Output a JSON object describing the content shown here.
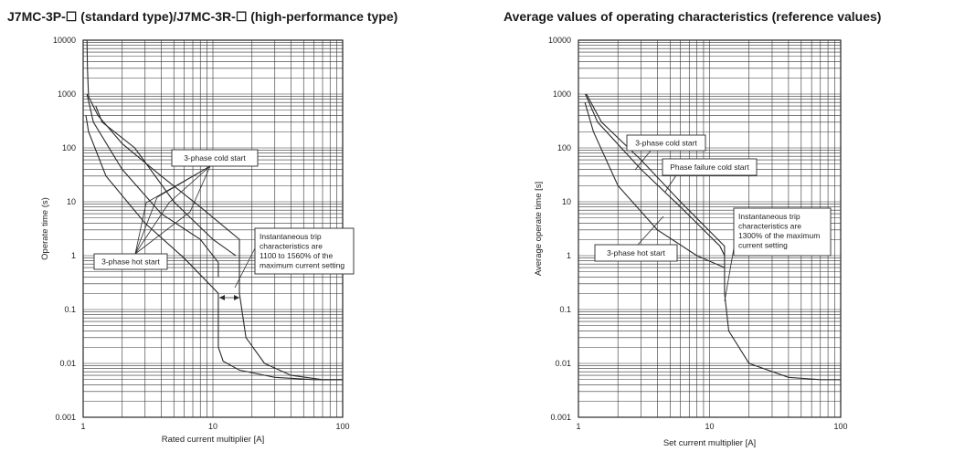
{
  "chart_data": [
    {
      "type": "line",
      "title": "J7MC-3P-☐ (standard type)/J7MC-3R-☐ (high-performance type)",
      "xlabel": "Rated current multiplier [A]",
      "ylabel": "Operate time (s)",
      "x_scale": "log",
      "y_scale": "log",
      "xlim": [
        1,
        100
      ],
      "ylim": [
        0.001,
        10000
      ],
      "x_ticks": [
        "1",
        "10",
        "100"
      ],
      "y_ticks": [
        "10000",
        "1000",
        "100",
        "10",
        "1",
        "0.1",
        "0.01",
        "0.001"
      ],
      "grid": true,
      "series": [
        {
          "values": [
            [
              1.05,
              400
            ],
            [
              1.1,
              200
            ],
            [
              1.5,
              30
            ],
            [
              3,
              4
            ],
            [
              6,
              0.9
            ],
            [
              11,
              0.2
            ],
            [
              11,
              0.02
            ],
            [
              12,
              0.011
            ],
            [
              16,
              0.0075
            ],
            [
              30,
              0.0055
            ],
            [
              60,
              0.005
            ],
            [
              100,
              0.005
            ]
          ]
        },
        {
          "values": [
            [
              1.07,
              1000
            ],
            [
              1.2,
              300
            ],
            [
              2,
              40
            ],
            [
              4,
              6
            ],
            [
              8,
              2
            ],
            [
              11,
              0.75
            ],
            [
              11,
              0.4
            ]
          ]
        },
        {
          "values": [
            [
              1.25,
              600
            ],
            [
              1.4,
              300
            ],
            [
              2.5,
              100
            ],
            [
              5,
              10
            ],
            [
              10,
              2
            ],
            [
              15,
              1
            ]
          ]
        },
        {
          "values": [
            [
              1.07,
              10000
            ],
            [
              1.08,
              3000
            ],
            [
              1.1,
              900
            ],
            [
              1.3,
              400
            ],
            [
              2,
              120
            ],
            [
              4,
              30
            ],
            [
              8,
              8
            ],
            [
              16,
              2
            ],
            [
              16,
              0.2
            ],
            [
              18,
              0.03
            ],
            [
              25,
              0.01
            ],
            [
              40,
              0.006
            ],
            [
              70,
              0.005
            ],
            [
              100,
              0.005
            ]
          ]
        }
      ],
      "annotations": [
        {
          "text": "3-phase cold start"
        },
        {
          "text": "3-phase hot start"
        },
        {
          "lines": [
            "Instantaneous trip",
            "characteristics are",
            "1100 to 1560% of the",
            "maximum current setting"
          ]
        }
      ]
    },
    {
      "type": "line",
      "title": "Average values of operating characteristics (reference values)",
      "xlabel": "Set current multiplier [A]",
      "ylabel": "Average operate time [s]",
      "x_scale": "log",
      "y_scale": "log",
      "xlim": [
        1,
        100
      ],
      "ylim": [
        0.001,
        10000
      ],
      "x_ticks": [
        "1",
        "10",
        "100"
      ],
      "y_ticks": [
        "10000",
        "1000",
        "100",
        "10",
        "1",
        "0.1",
        "0.01",
        "0.001"
      ],
      "grid": true,
      "series": [
        {
          "values": [
            [
              1.12,
              700
            ],
            [
              1.3,
              200
            ],
            [
              2,
              20
            ],
            [
              4,
              3
            ],
            [
              8,
              1
            ],
            [
              13,
              0.6
            ]
          ]
        },
        {
          "values": [
            [
              1.13,
              1000
            ],
            [
              1.4,
              300
            ],
            [
              3,
              40
            ],
            [
              6,
              8
            ],
            [
              12,
              1.5
            ],
            [
              13,
              1
            ]
          ]
        },
        {
          "values": [
            [
              1.15,
              1000
            ],
            [
              1.5,
              300
            ],
            [
              3,
              60
            ],
            [
              6,
              10
            ],
            [
              13,
              1.5
            ],
            [
              13,
              0.2
            ],
            [
              14,
              0.04
            ],
            [
              20,
              0.01
            ],
            [
              40,
              0.0055
            ],
            [
              70,
              0.005
            ],
            [
              100,
              0.005
            ]
          ]
        }
      ],
      "annotations": [
        {
          "text": "3-phase cold start"
        },
        {
          "text": "Phase failure cold start"
        },
        {
          "text": "3-phase hot start"
        },
        {
          "lines": [
            "Instantaneous trip",
            "characteristics are",
            "1300% of the maximum",
            "current setting"
          ]
        }
      ]
    }
  ]
}
